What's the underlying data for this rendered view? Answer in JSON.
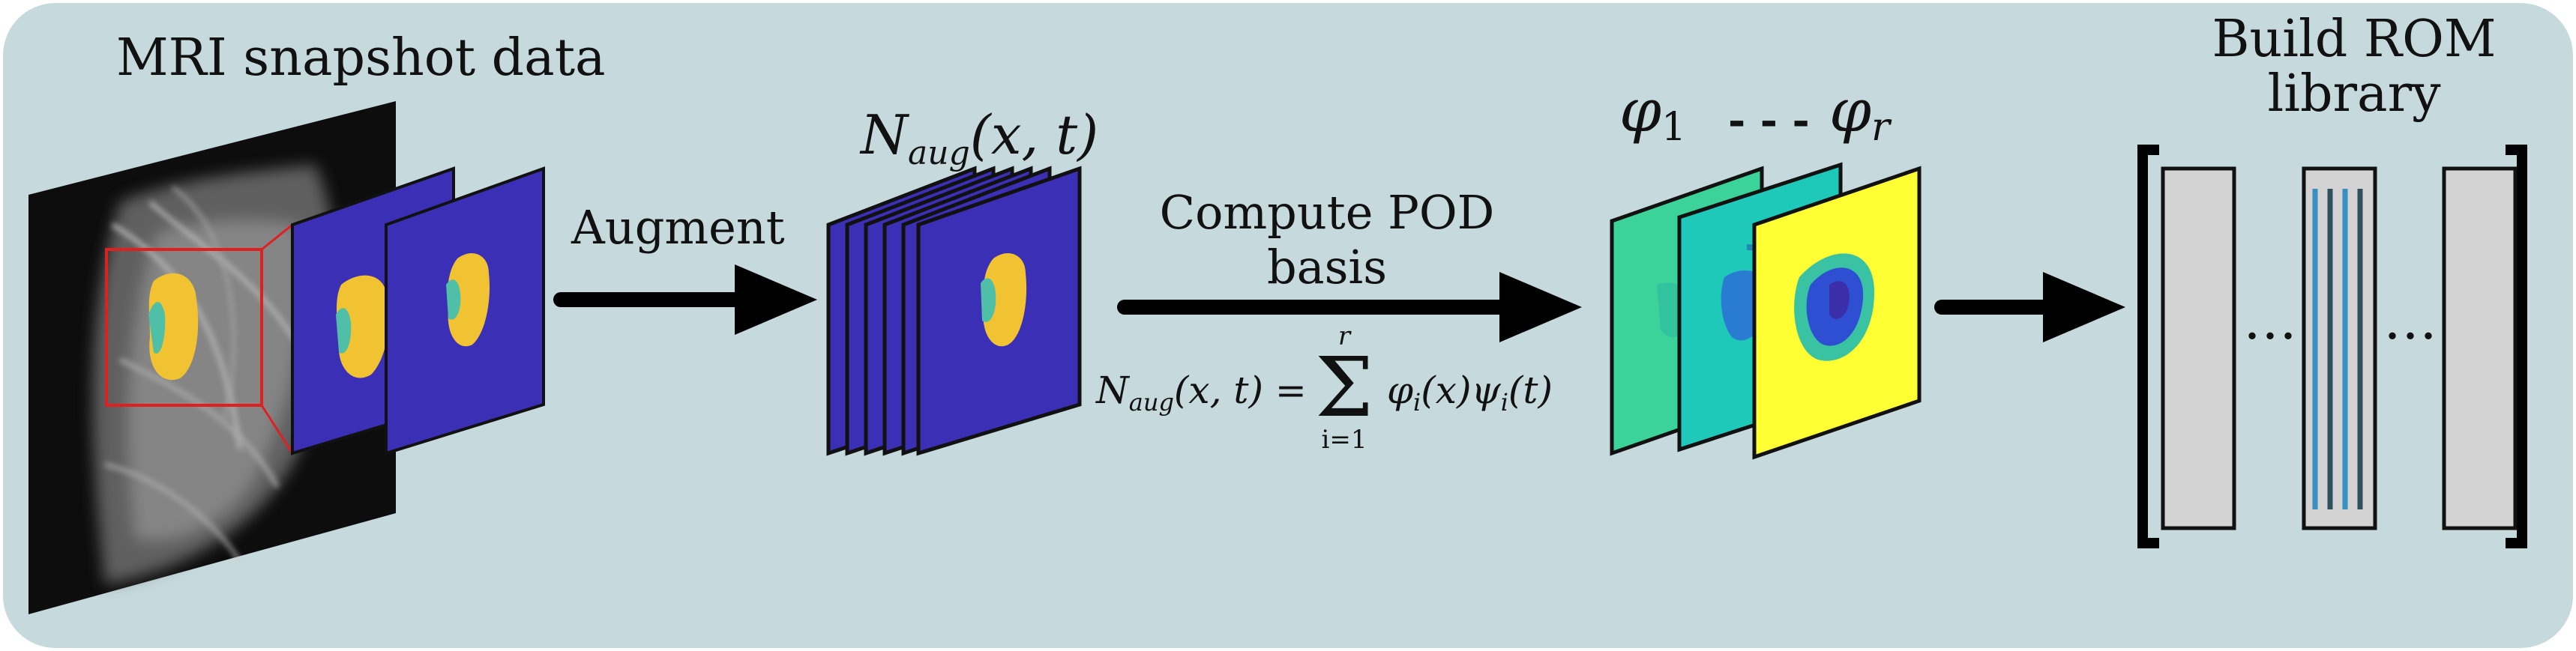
{
  "colors": {
    "panel_bg": "#c6d9dc",
    "slice_purple": "#3b2fb5",
    "tumor_yellow": "#f1c232",
    "tumor_green": "#4fbfa8",
    "teal": "#1fc9b9",
    "green_teal": "#3cd39b",
    "bright_yellow": "#ffff33",
    "blue": "#2e4fd1",
    "gray_column": "#d3d3d3",
    "line_blue": "#3a8fc2",
    "line_dark": "#2f4f5f",
    "arrow": "#000000"
  },
  "labels": {
    "mri_title": "MRI snapshot data",
    "augment": "Augment",
    "naug": "N",
    "naug_sub": "aug",
    "naug_args": "(x, t)",
    "pod_line1": "Compute POD",
    "pod_line2": "basis",
    "eq_lhs": "N",
    "eq_lhs_sub": "aug",
    "eq_lhs_args": "(x, t) =",
    "sum_top": "r",
    "sum_bottom": "i=1",
    "sum_symbol": "Σ",
    "eq_rhs": "φ",
    "eq_rhs_sub": "i",
    "eq_rhs_args1": "(x)",
    "eq_rhs_psi": "ψ",
    "eq_rhs_psi_sub": "i",
    "eq_rhs_args2": "(t)",
    "phi_first": "φ",
    "phi_first_sub": "1",
    "phi_dots": "- - -",
    "phi_last": "φ",
    "phi_last_sub": "r",
    "rom_line1": "Build ROM",
    "rom_line2": "library",
    "ellipsis1": "…",
    "ellipsis2": "…"
  },
  "icons": [
    "mri-image",
    "slice-stack",
    "pod-basis-stack",
    "rom-library-matrix",
    "right-arrow"
  ]
}
